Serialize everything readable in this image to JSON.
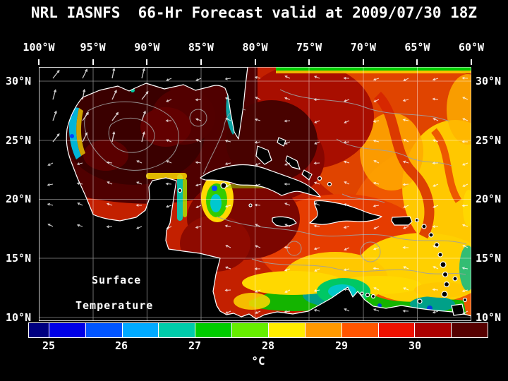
{
  "title": "NRL IASNFS  66-Hr Forecast valid at 2009/07/30 18Z",
  "axes": {
    "lon_labels": [
      "100°W",
      "95°W",
      "90°W",
      "85°W",
      "80°W",
      "75°W",
      "70°W",
      "65°W",
      "60°W"
    ],
    "lat_labels": [
      "30°N",
      "25°N",
      "20°N",
      "15°N",
      "10°N"
    ]
  },
  "map_overlay": {
    "line1": "Surface",
    "line2": "Temperature"
  },
  "colorbar": {
    "unit": "°C",
    "tick_labels": [
      "25",
      "26",
      "27",
      "28",
      "29",
      "30"
    ],
    "segment_colors": [
      "#000080",
      "#0000e6",
      "#0055ff",
      "#00aaff",
      "#00ccaa",
      "#00cc00",
      "#66ee00",
      "#ffee00",
      "#ff9900",
      "#ff5500",
      "#ee1100",
      "#aa0000",
      "#550000"
    ]
  }
}
